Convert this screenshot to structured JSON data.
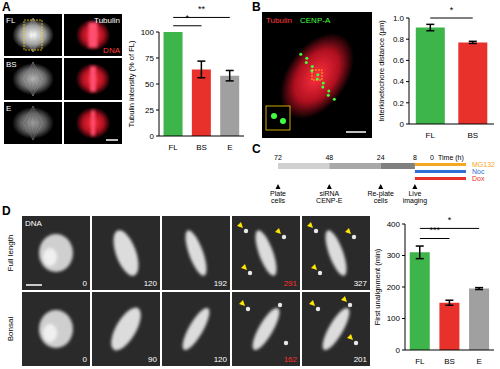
{
  "chart_data": [
    {
      "type": "bar",
      "y_label": "Tubulin intensity (% of FL)",
      "categories": [
        "FL",
        "BS",
        "E"
      ],
      "values": [
        100,
        64,
        58
      ],
      "errors": [
        0,
        8,
        5
      ],
      "colors": [
        "#3db54a",
        "#e8312b",
        "#a0a0a0"
      ],
      "ylim": [
        0,
        100
      ],
      "yticks": [
        0,
        25,
        50,
        75,
        100
      ],
      "significance": [
        {
          "from": "FL",
          "to": "BS",
          "label": "*"
        },
        {
          "from": "FL",
          "to": "E",
          "label": "**"
        }
      ]
    },
    {
      "type": "bar",
      "y_label": "Interkinetochore distance (μm)",
      "categories": [
        "FL",
        "BS"
      ],
      "values": [
        0.91,
        0.77
      ],
      "errors": [
        0.03,
        0.01
      ],
      "colors": [
        "#3db54a",
        "#e8312b"
      ],
      "ylim": [
        0,
        1
      ],
      "yticks": [
        0,
        0.2,
        0.4,
        0.6,
        0.8,
        {
          "value": 1,
          "label": "1.0"
        }
      ],
      "significance": [
        {
          "from": "FL",
          "to": "BS",
          "label": "*"
        }
      ]
    },
    {
      "type": "bar",
      "y_label": "First unalignment (min)",
      "categories": [
        "FL",
        "BS",
        "E"
      ],
      "values": [
        310,
        150,
        195
      ],
      "errors": [
        20,
        8,
        3
      ],
      "colors": [
        "#3db54a",
        "#e8312b",
        "#a0a0a0"
      ],
      "ylim": [
        0,
        400
      ],
      "yticks": [
        0,
        100,
        200,
        300,
        400
      ],
      "significance": [
        {
          "from": "FL",
          "to": "BS",
          "label": "***"
        },
        {
          "from": "FL",
          "to": "E",
          "label": "*"
        }
      ]
    }
  ],
  "figure": {
    "A": {
      "letter": "A",
      "rows": [
        "FL",
        "BS",
        "E"
      ],
      "channel_labels": [
        "Tubulin",
        "DNA"
      ]
    },
    "B": {
      "letter": "B",
      "channel_labels": [
        "Tubulin",
        "CENP-A"
      ]
    },
    "C": {
      "letter": "C",
      "axis_label": "Time (h)",
      "ticks": [
        72,
        48,
        24,
        8,
        0
      ],
      "events": [
        {
          "time": 72,
          "label": "Plate cells"
        },
        {
          "time": 48,
          "label": "siRNA CENP-E"
        },
        {
          "time": 24,
          "label": "Re-plate cells"
        },
        {
          "time": 8,
          "label": "Live imaging"
        }
      ],
      "treatments": [
        {
          "name": "MG132",
          "color": "#f5a623"
        },
        {
          "name": "Noc",
          "color": "#2f6fd6"
        },
        {
          "name": "Dox",
          "color": "#e8302a"
        }
      ]
    },
    "D": {
      "letter": "D",
      "channel_label": "DNA",
      "rows": [
        {
          "label": "Full length",
          "times": [
            0,
            120,
            192,
            291,
            327
          ],
          "highlight": 291
        },
        {
          "label": "Bonsai",
          "times": [
            0,
            90,
            120,
            162,
            201
          ],
          "highlight": 162
        }
      ]
    }
  }
}
